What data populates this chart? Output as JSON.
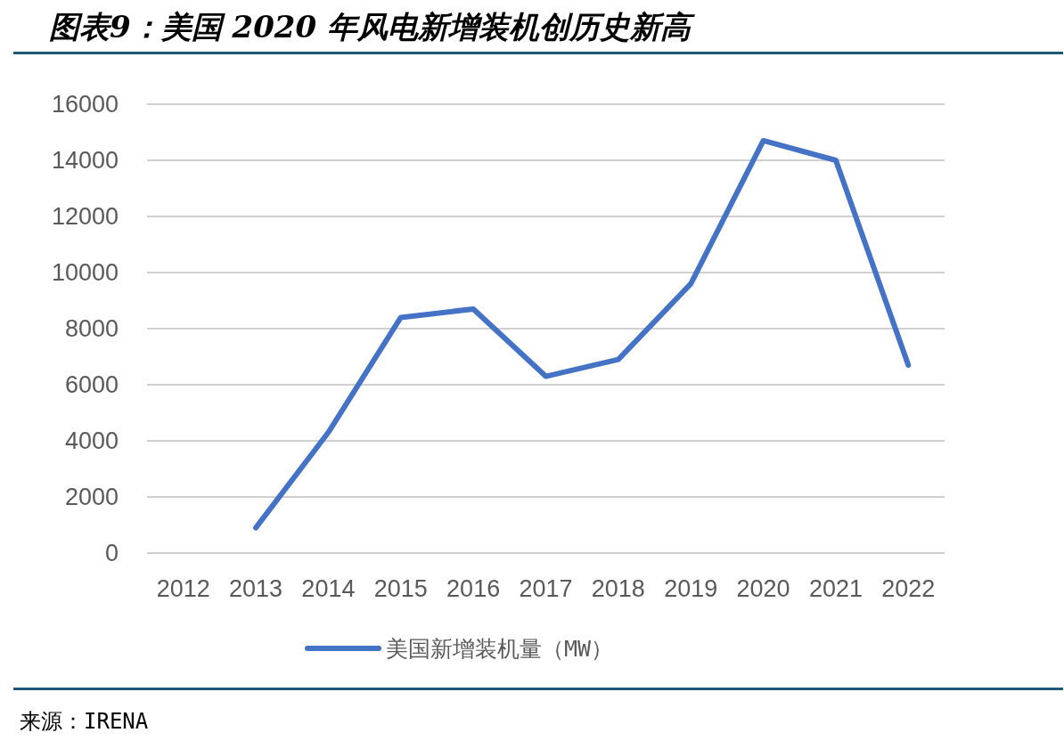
{
  "chart_data": {
    "type": "line",
    "title": "图表9：美国 2020 年风电新增装机创历史新高",
    "categories": [
      "2012",
      "2013",
      "2014",
      "2015",
      "2016",
      "2017",
      "2018",
      "2019",
      "2020",
      "2021",
      "2022"
    ],
    "series": [
      {
        "name": "美国新增装机量（MW）",
        "color": "#4472c4",
        "values": [
          null,
          900,
          4300,
          8400,
          8700,
          6300,
          6900,
          9600,
          14700,
          14000,
          6700
        ]
      }
    ],
    "ylim": [
      0,
      16000
    ],
    "yticks": [
      0,
      2000,
      4000,
      6000,
      8000,
      10000,
      12000,
      14000,
      16000
    ],
    "grid": "y",
    "legend": "bottom",
    "marker": "none",
    "line_style": "solid",
    "annotations": [
      "来源：IRENA"
    ]
  }
}
